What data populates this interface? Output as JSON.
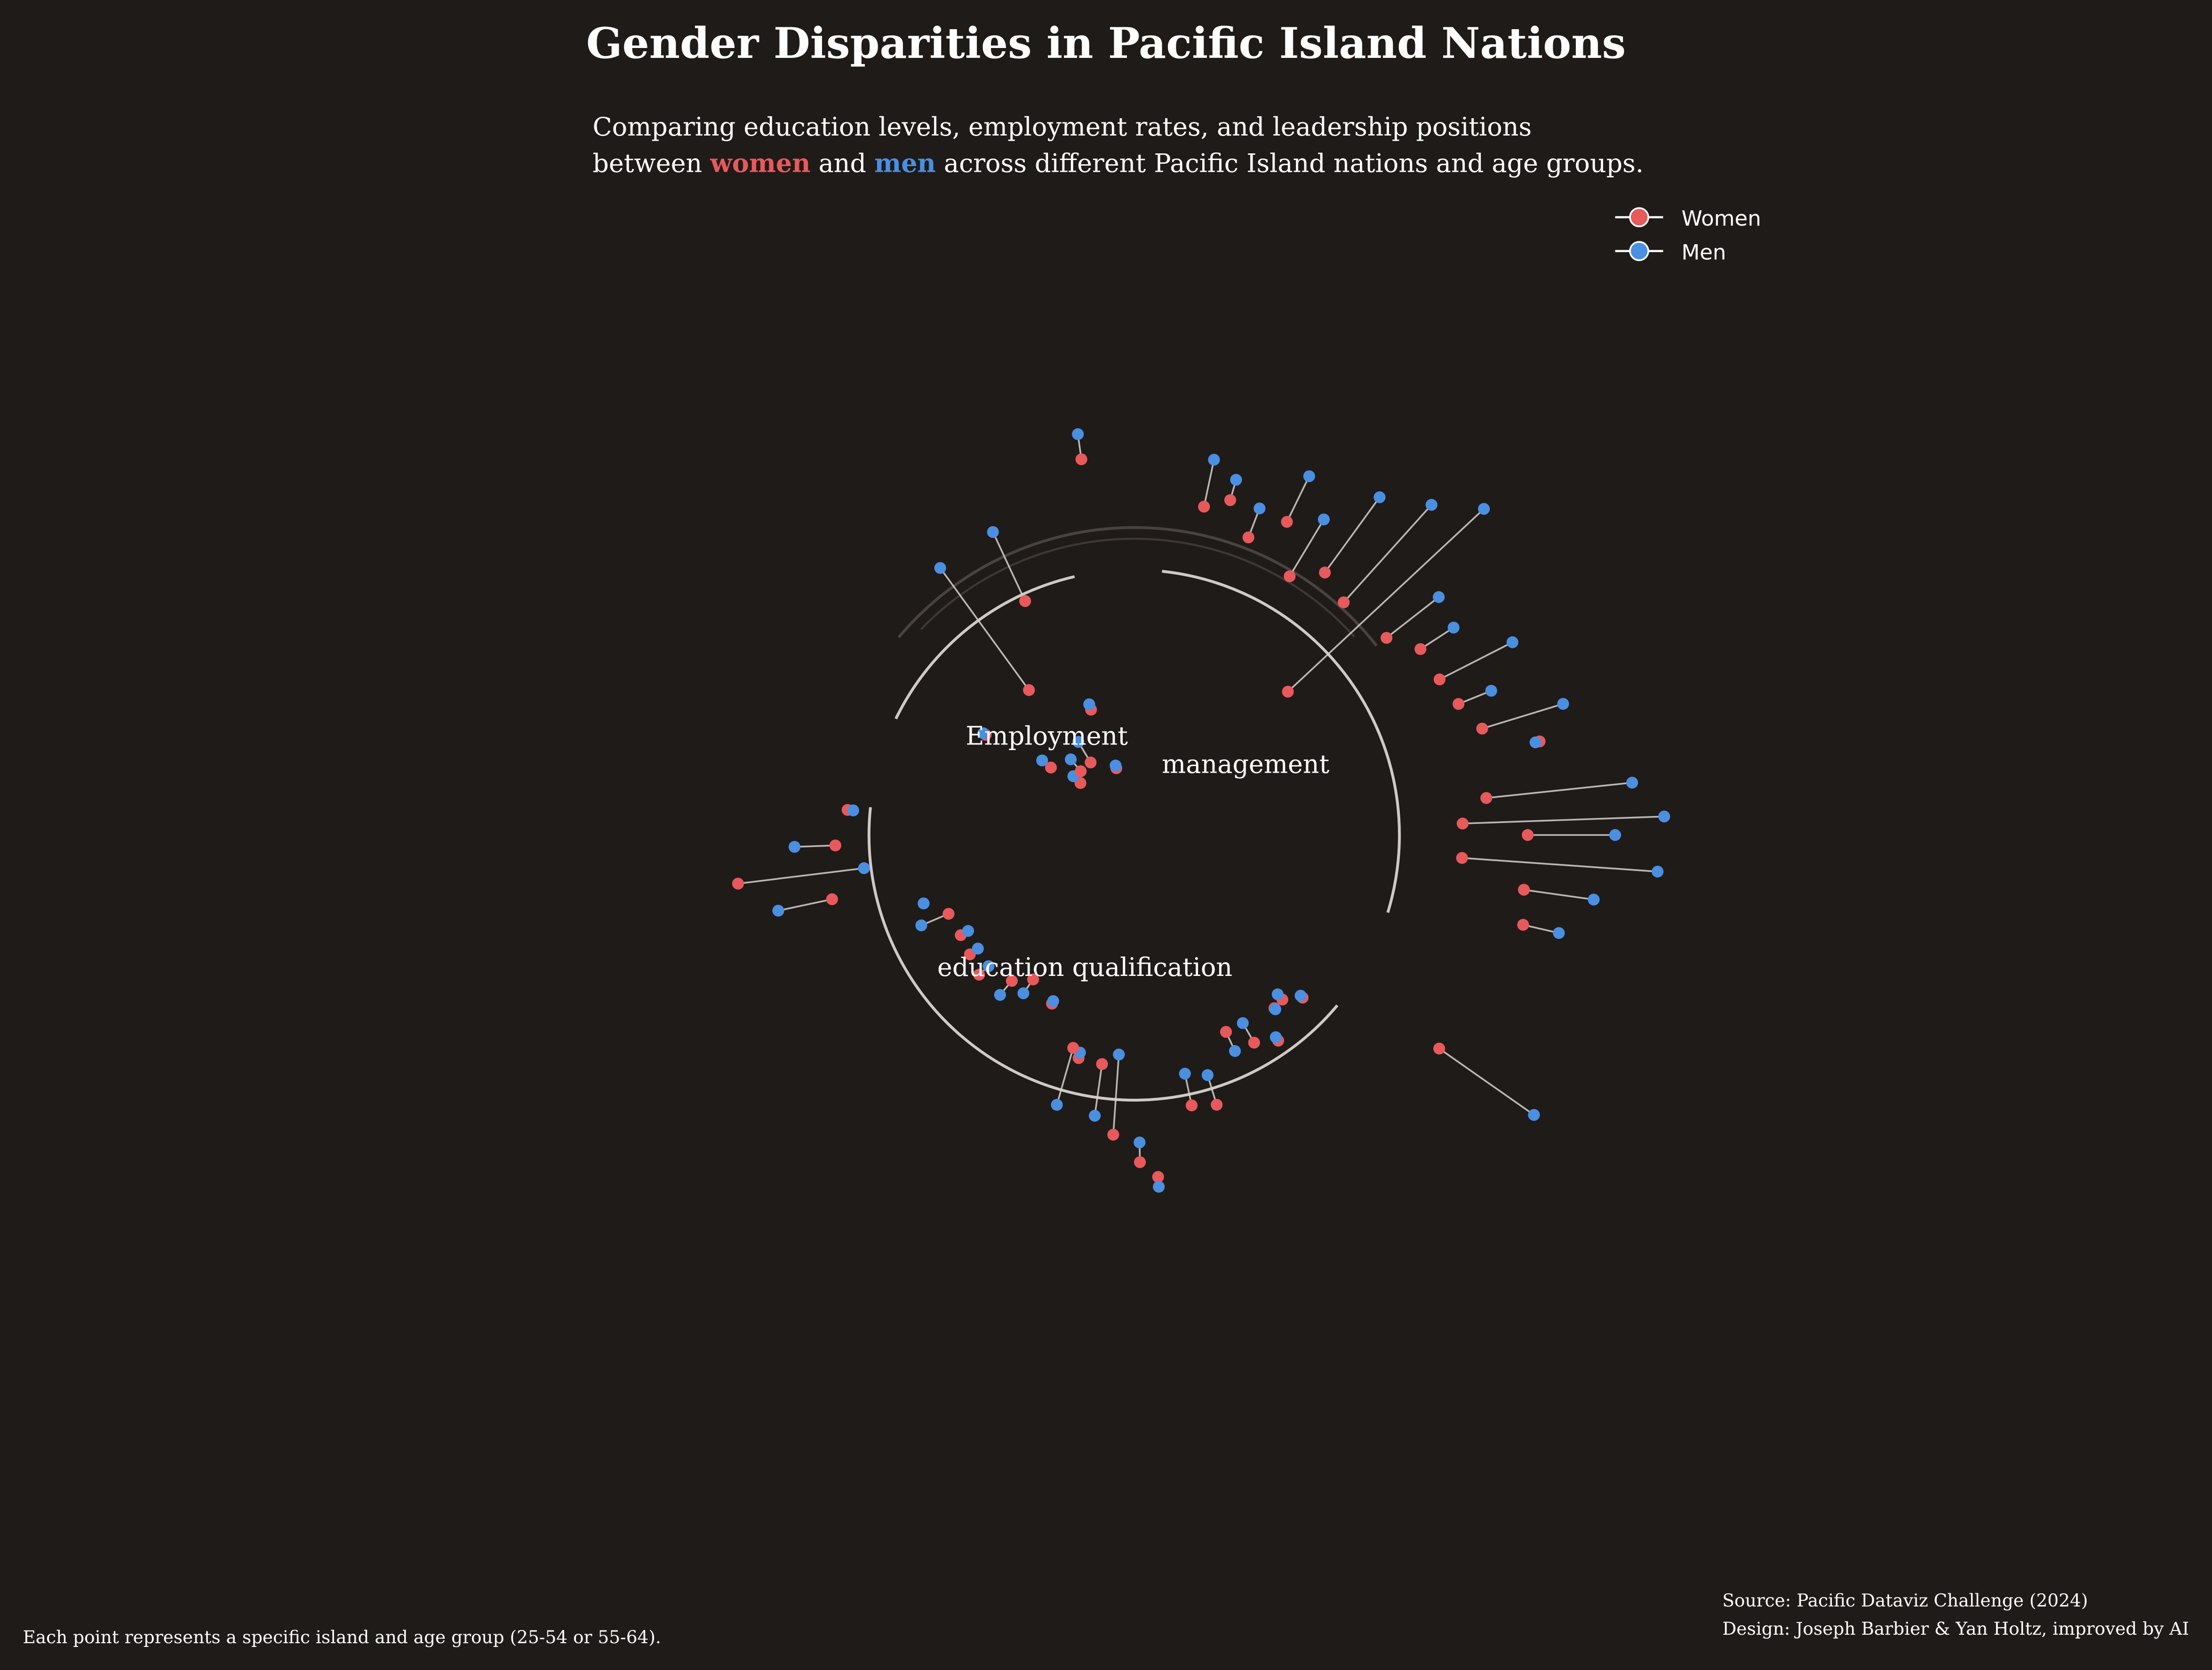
{
  "title": "Gender Disparities in Pacific Island Nations",
  "subtitle": {
    "line1": "Comparing education levels, employment rates, and leadership positions",
    "line2_before": "between ",
    "women": "women",
    "and": " and ",
    "men": "men",
    "line2_after": " across different Pacific Island nations and age groups."
  },
  "legend": {
    "women": "Women",
    "men": "Men",
    "placement": "top-right"
  },
  "footnote": "Each point represents a specific island and age group (25-54 or 55-64).",
  "source": "Source: Pacific Dataviz Challenge (2024)",
  "credit": "Design: Joseph Barbier & Yan Holtz, improved by AI",
  "colors": {
    "background": "#1f1b19",
    "women": "#e8595c",
    "men": "#4a8fe0",
    "axis": "#cfcac6",
    "text": "#ffffff"
  },
  "chart_data": {
    "type": "scatter",
    "subtype": "circular dumbbell (angle = island/age group, radius = value)",
    "groups": [
      {
        "name": "Employment",
        "label": "Employment",
        "points": [
          {
            "angle": -146,
            "women": 127,
            "men": 129
          },
          {
            "angle": -141,
            "women": 76,
            "men": 84
          },
          {
            "angle": -136,
            "women": 53,
            "men": 60
          },
          {
            "angle": -130,
            "women": 59,
            "men": 70
          },
          {
            "angle": -126,
            "women": 127,
            "men": 234
          },
          {
            "angle": -121,
            "women": 60,
            "men": 77
          },
          {
            "angle": -115,
            "women": 183,
            "men": 237
          },
          {
            "angle": -109,
            "women": 94,
            "men": 98
          },
          {
            "angle": -105,
            "women": 49,
            "men": 51
          },
          {
            "angle": -98,
            "women": 269,
            "men": 287
          }
        ]
      },
      {
        "name": "management",
        "label": "management",
        "points": [
          {
            "angle": -78,
            "women": 238,
            "men": 272
          },
          {
            "angle": -74,
            "women": 247,
            "men": 262
          },
          {
            "angle": -69,
            "women": 226,
            "men": 248
          },
          {
            "angle": -64,
            "women": 247,
            "men": 283
          },
          {
            "angle": -59,
            "women": 214,
            "men": 261
          },
          {
            "angle": -54,
            "women": 230,
            "men": 296
          },
          {
            "angle": -48,
            "women": 222,
            "men": 315
          },
          {
            "angle": -43,
            "women": 149,
            "men": 339
          },
          {
            "angle": -38,
            "women": 227,
            "men": 274
          },
          {
            "angle": -33,
            "women": 242,
            "men": 270
          },
          {
            "angle": -27,
            "women": 243,
            "men": 301
          },
          {
            "angle": -22,
            "women": 248,
            "men": 273
          },
          {
            "angle": -17,
            "women": 258,
            "men": 318
          },
          {
            "angle": -13,
            "women": 295,
            "men": 292
          },
          {
            "angle": -6,
            "women": 251,
            "men": 355
          },
          {
            "angle": -2,
            "women": 233,
            "men": 376
          },
          {
            "angle": 0,
            "women": 279,
            "men": 341
          },
          {
            "angle": 4,
            "women": 233,
            "men": 372
          },
          {
            "angle": 8,
            "women": 279,
            "men": 329
          },
          {
            "angle": 13,
            "women": 283,
            "men": 309
          },
          {
            "angle": 35,
            "women": 264,
            "men": 346
          }
        ]
      },
      {
        "name": "education qualification",
        "label": "education qualification",
        "points": [
          {
            "angle": 44,
            "women": 166,
            "men": 164
          },
          {
            "angle": 48,
            "women": 157,
            "men": 152
          },
          {
            "angle": 51,
            "women": 158,
            "men": 159
          },
          {
            "angle": 55,
            "women": 178,
            "men": 175
          },
          {
            "angle": 60,
            "women": 170,
            "men": 154
          },
          {
            "angle": 65,
            "women": 154,
            "men": 169
          },
          {
            "angle": 73,
            "women": 200,
            "men": 178
          },
          {
            "angle": 78,
            "women": 196,
            "men": 173
          },
          {
            "angle": 86,
            "women": 243,
            "men": 250
          },
          {
            "angle": 89,
            "women": 232,
            "men": 218
          },
          {
            "angle": 94,
            "women": 213,
            "men": 156
          },
          {
            "angle": 98,
            "women": 164,
            "men": 201
          },
          {
            "angle": 104,
            "women": 163,
            "men": 159
          },
          {
            "angle": 106,
            "women": 157,
            "men": 199
          },
          {
            "angle": 116,
            "women": 133,
            "men": 131
          },
          {
            "angle": 125,
            "women": 125,
            "men": 137
          },
          {
            "angle": 130,
            "women": 135,
            "men": 148
          },
          {
            "angle": 138,
            "women": 148,
            "men": 139
          },
          {
            "angle": 144,
            "women": 144,
            "men": 137
          },
          {
            "angle": 150,
            "women": 142,
            "men": 136
          },
          {
            "angle": 157,
            "women": 143,
            "men": 164
          },
          {
            "angle": 162,
            "women": 157,
            "men": 157
          },
          {
            "angle": 168,
            "women": 219,
            "men": 258
          },
          {
            "angle": 173,
            "women": 283,
            "men": 193
          },
          {
            "angle": 178,
            "women": 212,
            "men": 241
          },
          {
            "angle": 185,
            "women": 204,
            "men": 200
          }
        ]
      }
    ]
  }
}
